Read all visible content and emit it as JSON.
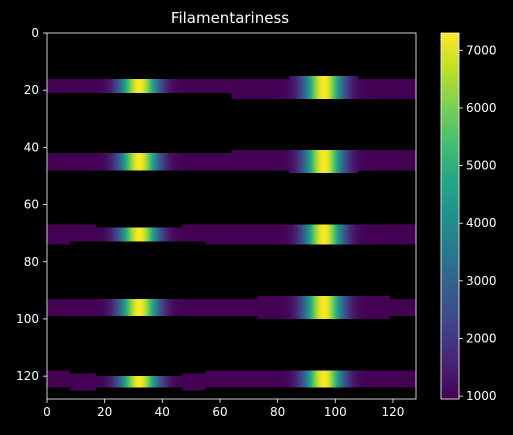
{
  "chart_data": {
    "type": "heatmap",
    "title": "Filamentariness",
    "xlabel": "",
    "ylabel": "",
    "xlim": [
      0,
      128
    ],
    "ylim": [
      128,
      0
    ],
    "y_inverted": true,
    "x_ticks": [
      0,
      20,
      40,
      60,
      80,
      100,
      120
    ],
    "y_ticks": [
      0,
      20,
      40,
      60,
      80,
      100,
      120
    ],
    "grid": false,
    "background_color": "#000000",
    "colormap": "viridis",
    "colorbar": {
      "vmin": 950,
      "vmax": 7300,
      "ticks": [
        1000,
        2000,
        3000,
        4000,
        5000,
        6000,
        7000
      ]
    },
    "peak_value": 7300,
    "edge_value": 950,
    "peak_x": [
      32,
      96
    ],
    "peak_width": 4.5,
    "bands": [
      {
        "rows": [
          [
            16,
            22,
            0,
            64
          ],
          [
            16,
            22,
            64,
            128
          ]
        ],
        "steps": [
          [
            16,
            21,
            0,
            64
          ],
          [
            16,
            23,
            64,
            84
          ],
          [
            15,
            23,
            84,
            108
          ],
          [
            16,
            23,
            108,
            128
          ]
        ]
      },
      {
        "steps": [
          [
            42,
            48,
            0,
            64
          ],
          [
            41,
            48,
            64,
            84
          ],
          [
            41,
            49,
            84,
            108
          ],
          [
            41,
            48,
            108,
            128
          ]
        ]
      },
      {
        "steps": [
          [
            67,
            74,
            0,
            8
          ],
          [
            67,
            73,
            8,
            17
          ],
          [
            68,
            73,
            17,
            47
          ],
          [
            67,
            73,
            47,
            55
          ],
          [
            67,
            74,
            55,
            128
          ]
        ]
      },
      {
        "steps": [
          [
            93,
            99,
            0,
            73
          ],
          [
            92,
            100,
            73,
            119
          ],
          [
            93,
            99,
            119,
            128
          ]
        ]
      },
      {
        "steps": [
          [
            118,
            124,
            0,
            8
          ],
          [
            119,
            125,
            8,
            17
          ],
          [
            120,
            124,
            17,
            47
          ],
          [
            119,
            125,
            47,
            55
          ],
          [
            118,
            124,
            55,
            128
          ]
        ]
      }
    ]
  }
}
